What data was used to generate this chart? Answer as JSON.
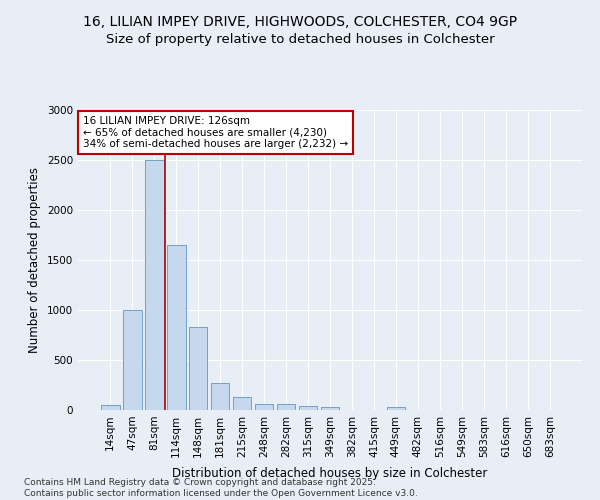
{
  "title_line1": "16, LILIAN IMPEY DRIVE, HIGHWOODS, COLCHESTER, CO4 9GP",
  "title_line2": "Size of property relative to detached houses in Colchester",
  "xlabel": "Distribution of detached houses by size in Colchester",
  "ylabel": "Number of detached properties",
  "categories": [
    "14sqm",
    "47sqm",
    "81sqm",
    "114sqm",
    "148sqm",
    "181sqm",
    "215sqm",
    "248sqm",
    "282sqm",
    "315sqm",
    "349sqm",
    "382sqm",
    "415sqm",
    "449sqm",
    "482sqm",
    "516sqm",
    "549sqm",
    "583sqm",
    "616sqm",
    "650sqm",
    "683sqm"
  ],
  "values": [
    55,
    1000,
    2500,
    1650,
    830,
    270,
    130,
    65,
    60,
    40,
    30,
    0,
    0,
    35,
    0,
    0,
    0,
    0,
    0,
    0,
    0
  ],
  "bar_color": "#c5d8ee",
  "bar_edge_color": "#6fa0c8",
  "vline_x_index": 2.5,
  "vline_color": "#c00000",
  "annotation_text": "16 LILIAN IMPEY DRIVE: 126sqm\n← 65% of detached houses are smaller (4,230)\n34% of semi-detached houses are larger (2,232) →",
  "annotation_box_color": "#ffffff",
  "annotation_box_edge": "#c00000",
  "ylim": [
    0,
    3000
  ],
  "yticks": [
    0,
    500,
    1000,
    1500,
    2000,
    2500,
    3000
  ],
  "bg_color": "#e8eef5",
  "plot_bg_color": "#e8eef5",
  "footnote": "Contains HM Land Registry data © Crown copyright and database right 2025.\nContains public sector information licensed under the Open Government Licence v3.0.",
  "title_fontsize": 10,
  "subtitle_fontsize": 9.5,
  "axis_label_fontsize": 8.5,
  "tick_fontsize": 7.5,
  "annotation_fontsize": 7.5,
  "footnote_fontsize": 6.5
}
